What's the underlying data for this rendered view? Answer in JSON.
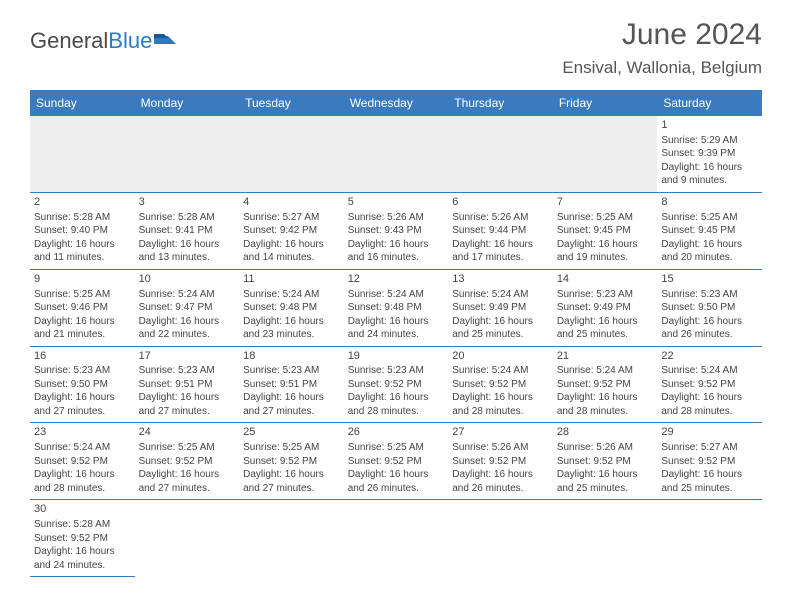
{
  "brand": {
    "part1": "General",
    "part2": "Blue"
  },
  "title": "June 2024",
  "location": "Ensival, Wallonia, Belgium",
  "colors": {
    "header_bg": "#3a7bbf",
    "header_text": "#ffffff",
    "border": "#3a7bbf",
    "blank_bg": "#eeeeee",
    "body_text": "#444444",
    "brand_gray": "#4a4a4a",
    "brand_blue": "#2b7bc3"
  },
  "weekdays": [
    "Sunday",
    "Monday",
    "Tuesday",
    "Wednesday",
    "Thursday",
    "Friday",
    "Saturday"
  ],
  "calendar": {
    "type": "table",
    "columns": 7,
    "cell_font_size": 10,
    "rows": [
      [
        {
          "blank": true
        },
        {
          "blank": true
        },
        {
          "blank": true
        },
        {
          "blank": true
        },
        {
          "blank": true
        },
        {
          "blank": true
        },
        {
          "day": "1",
          "sunrise": "Sunrise: 5:29 AM",
          "sunset": "Sunset: 9:39 PM",
          "daylight1": "Daylight: 16 hours",
          "daylight2": "and 9 minutes."
        }
      ],
      [
        {
          "day": "2",
          "sunrise": "Sunrise: 5:28 AM",
          "sunset": "Sunset: 9:40 PM",
          "daylight1": "Daylight: 16 hours",
          "daylight2": "and 11 minutes."
        },
        {
          "day": "3",
          "sunrise": "Sunrise: 5:28 AM",
          "sunset": "Sunset: 9:41 PM",
          "daylight1": "Daylight: 16 hours",
          "daylight2": "and 13 minutes."
        },
        {
          "day": "4",
          "sunrise": "Sunrise: 5:27 AM",
          "sunset": "Sunset: 9:42 PM",
          "daylight1": "Daylight: 16 hours",
          "daylight2": "and 14 minutes."
        },
        {
          "day": "5",
          "sunrise": "Sunrise: 5:26 AM",
          "sunset": "Sunset: 9:43 PM",
          "daylight1": "Daylight: 16 hours",
          "daylight2": "and 16 minutes."
        },
        {
          "day": "6",
          "sunrise": "Sunrise: 5:26 AM",
          "sunset": "Sunset: 9:44 PM",
          "daylight1": "Daylight: 16 hours",
          "daylight2": "and 17 minutes."
        },
        {
          "day": "7",
          "sunrise": "Sunrise: 5:25 AM",
          "sunset": "Sunset: 9:45 PM",
          "daylight1": "Daylight: 16 hours",
          "daylight2": "and 19 minutes."
        },
        {
          "day": "8",
          "sunrise": "Sunrise: 5:25 AM",
          "sunset": "Sunset: 9:45 PM",
          "daylight1": "Daylight: 16 hours",
          "daylight2": "and 20 minutes."
        }
      ],
      [
        {
          "day": "9",
          "sunrise": "Sunrise: 5:25 AM",
          "sunset": "Sunset: 9:46 PM",
          "daylight1": "Daylight: 16 hours",
          "daylight2": "and 21 minutes."
        },
        {
          "day": "10",
          "sunrise": "Sunrise: 5:24 AM",
          "sunset": "Sunset: 9:47 PM",
          "daylight1": "Daylight: 16 hours",
          "daylight2": "and 22 minutes."
        },
        {
          "day": "11",
          "sunrise": "Sunrise: 5:24 AM",
          "sunset": "Sunset: 9:48 PM",
          "daylight1": "Daylight: 16 hours",
          "daylight2": "and 23 minutes."
        },
        {
          "day": "12",
          "sunrise": "Sunrise: 5:24 AM",
          "sunset": "Sunset: 9:48 PM",
          "daylight1": "Daylight: 16 hours",
          "daylight2": "and 24 minutes."
        },
        {
          "day": "13",
          "sunrise": "Sunrise: 5:24 AM",
          "sunset": "Sunset: 9:49 PM",
          "daylight1": "Daylight: 16 hours",
          "daylight2": "and 25 minutes."
        },
        {
          "day": "14",
          "sunrise": "Sunrise: 5:23 AM",
          "sunset": "Sunset: 9:49 PM",
          "daylight1": "Daylight: 16 hours",
          "daylight2": "and 25 minutes."
        },
        {
          "day": "15",
          "sunrise": "Sunrise: 5:23 AM",
          "sunset": "Sunset: 9:50 PM",
          "daylight1": "Daylight: 16 hours",
          "daylight2": "and 26 minutes."
        }
      ],
      [
        {
          "day": "16",
          "sunrise": "Sunrise: 5:23 AM",
          "sunset": "Sunset: 9:50 PM",
          "daylight1": "Daylight: 16 hours",
          "daylight2": "and 27 minutes."
        },
        {
          "day": "17",
          "sunrise": "Sunrise: 5:23 AM",
          "sunset": "Sunset: 9:51 PM",
          "daylight1": "Daylight: 16 hours",
          "daylight2": "and 27 minutes."
        },
        {
          "day": "18",
          "sunrise": "Sunrise: 5:23 AM",
          "sunset": "Sunset: 9:51 PM",
          "daylight1": "Daylight: 16 hours",
          "daylight2": "and 27 minutes."
        },
        {
          "day": "19",
          "sunrise": "Sunrise: 5:23 AM",
          "sunset": "Sunset: 9:52 PM",
          "daylight1": "Daylight: 16 hours",
          "daylight2": "and 28 minutes."
        },
        {
          "day": "20",
          "sunrise": "Sunrise: 5:24 AM",
          "sunset": "Sunset: 9:52 PM",
          "daylight1": "Daylight: 16 hours",
          "daylight2": "and 28 minutes."
        },
        {
          "day": "21",
          "sunrise": "Sunrise: 5:24 AM",
          "sunset": "Sunset: 9:52 PM",
          "daylight1": "Daylight: 16 hours",
          "daylight2": "and 28 minutes."
        },
        {
          "day": "22",
          "sunrise": "Sunrise: 5:24 AM",
          "sunset": "Sunset: 9:52 PM",
          "daylight1": "Daylight: 16 hours",
          "daylight2": "and 28 minutes."
        }
      ],
      [
        {
          "day": "23",
          "sunrise": "Sunrise: 5:24 AM",
          "sunset": "Sunset: 9:52 PM",
          "daylight1": "Daylight: 16 hours",
          "daylight2": "and 28 minutes."
        },
        {
          "day": "24",
          "sunrise": "Sunrise: 5:25 AM",
          "sunset": "Sunset: 9:52 PM",
          "daylight1": "Daylight: 16 hours",
          "daylight2": "and 27 minutes."
        },
        {
          "day": "25",
          "sunrise": "Sunrise: 5:25 AM",
          "sunset": "Sunset: 9:52 PM",
          "daylight1": "Daylight: 16 hours",
          "daylight2": "and 27 minutes."
        },
        {
          "day": "26",
          "sunrise": "Sunrise: 5:25 AM",
          "sunset": "Sunset: 9:52 PM",
          "daylight1": "Daylight: 16 hours",
          "daylight2": "and 26 minutes."
        },
        {
          "day": "27",
          "sunrise": "Sunrise: 5:26 AM",
          "sunset": "Sunset: 9:52 PM",
          "daylight1": "Daylight: 16 hours",
          "daylight2": "and 26 minutes."
        },
        {
          "day": "28",
          "sunrise": "Sunrise: 5:26 AM",
          "sunset": "Sunset: 9:52 PM",
          "daylight1": "Daylight: 16 hours",
          "daylight2": "and 25 minutes."
        },
        {
          "day": "29",
          "sunrise": "Sunrise: 5:27 AM",
          "sunset": "Sunset: 9:52 PM",
          "daylight1": "Daylight: 16 hours",
          "daylight2": "and 25 minutes."
        }
      ],
      [
        {
          "day": "30",
          "sunrise": "Sunrise: 5:28 AM",
          "sunset": "Sunset: 9:52 PM",
          "daylight1": "Daylight: 16 hours",
          "daylight2": "and 24 minutes."
        },
        {
          "blank": true,
          "noborder": true
        },
        {
          "blank": true,
          "noborder": true
        },
        {
          "blank": true,
          "noborder": true
        },
        {
          "blank": true,
          "noborder": true
        },
        {
          "blank": true,
          "noborder": true
        },
        {
          "blank": true,
          "noborder": true
        }
      ]
    ]
  }
}
